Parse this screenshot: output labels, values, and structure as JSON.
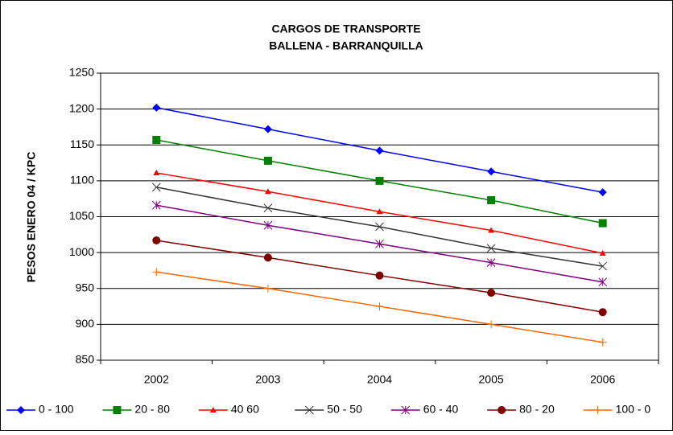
{
  "chart_data": {
    "type": "line",
    "title": "CARGOS DE TRANSPORTE",
    "subtitle": "BALLENA - BARRANQUILLA",
    "y_label": "PESOS ENERO 04 / KPC",
    "categories": [
      "2002",
      "2003",
      "2004",
      "2005",
      "2006"
    ],
    "series": [
      {
        "name": "0 - 100",
        "color": "#0000ff",
        "marker": "diamond",
        "values": [
          1202,
          1172,
          1142,
          1113,
          1084
        ]
      },
      {
        "name": "20 - 80",
        "color": "#008000",
        "marker": "square",
        "values": [
          1157,
          1128,
          1100,
          1073,
          1041
        ]
      },
      {
        "name": "40 60",
        "color": "#ff0000",
        "marker": "triangle",
        "values": [
          1111,
          1085,
          1057,
          1031,
          999
        ]
      },
      {
        "name": "50 - 50",
        "color": "#333333",
        "marker": "x",
        "values": [
          1091,
          1062,
          1036,
          1006,
          981
        ]
      },
      {
        "name": "60 - 40",
        "color": "#800080",
        "marker": "star",
        "values": [
          1066,
          1038,
          1012,
          986,
          959
        ]
      },
      {
        "name": "80 - 20",
        "color": "#800000",
        "marker": "circle",
        "values": [
          1017,
          993,
          968,
          944,
          917
        ]
      },
      {
        "name": "100 - 0",
        "color": "#ff6600",
        "marker": "plus",
        "values": [
          973,
          950,
          925,
          900,
          875
        ]
      }
    ],
    "ylim": [
      850,
      1250
    ],
    "yticks": [
      850,
      900,
      950,
      1000,
      1050,
      1100,
      1150,
      1200,
      1250
    ],
    "grid": true,
    "legend": "bottom"
  }
}
